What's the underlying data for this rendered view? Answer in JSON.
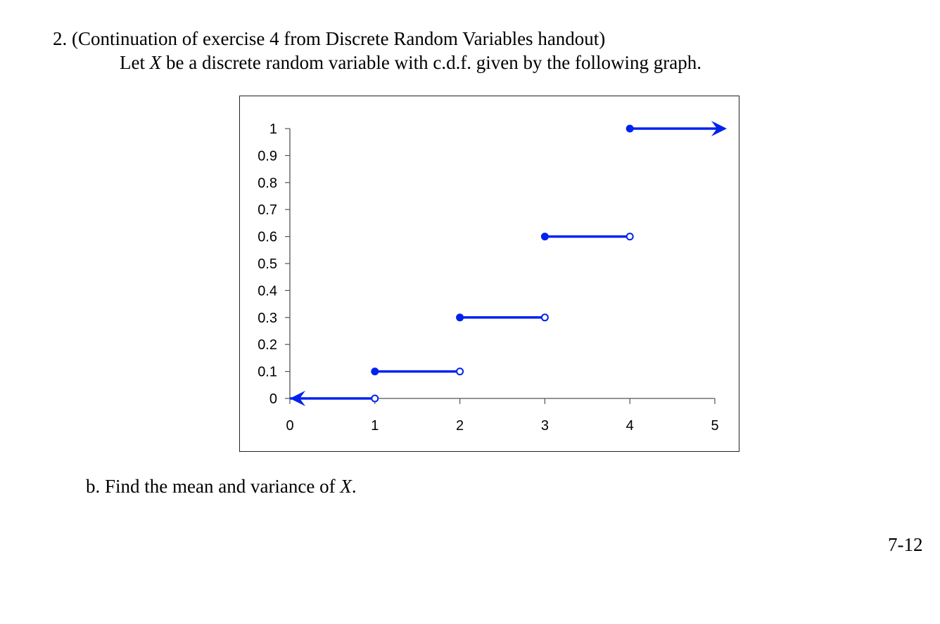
{
  "header": {
    "line1": "2. (Continuation of exercise 4 from Discrete Random Variables handout)",
    "line2_prefix": "Let ",
    "line2_var": "X",
    "line2_suffix": " be a discrete random variable with c.d.f. given by the following graph."
  },
  "part_b": {
    "prefix": "b. Find the mean and variance of ",
    "var": "X",
    "suffix": "."
  },
  "page_number": "7-12",
  "colors": {
    "series": "#0022ee",
    "axis": "#555555"
  },
  "chart_data": {
    "type": "line",
    "title": "",
    "xlabel": "",
    "ylabel": "",
    "xlim": [
      0,
      5
    ],
    "ylim": [
      0,
      1
    ],
    "grid": false,
    "legend": null,
    "x_ticks": [
      "0",
      "1",
      "2",
      "3",
      "4",
      "5"
    ],
    "y_ticks": [
      "0",
      "0.1",
      "0.2",
      "0.3",
      "0.4",
      "0.5",
      "0.6",
      "0.7",
      "0.8",
      "0.9",
      "1"
    ],
    "description": "Step function c.d.f.; closed dot at left end of each step, open dot at right end; arrows at both extremes",
    "segments": [
      {
        "x_start": 0,
        "x_end": 1,
        "y": 0,
        "left": "arrow",
        "right": "open"
      },
      {
        "x_start": 1,
        "x_end": 2,
        "y": 0.1,
        "left": "closed",
        "right": "open"
      },
      {
        "x_start": 2,
        "x_end": 3,
        "y": 0.3,
        "left": "closed",
        "right": "open"
      },
      {
        "x_start": 3,
        "x_end": 4,
        "y": 0.6,
        "left": "closed",
        "right": "open"
      },
      {
        "x_start": 4,
        "x_end": 5,
        "y": 1.0,
        "left": "closed",
        "right": "arrow"
      }
    ]
  }
}
